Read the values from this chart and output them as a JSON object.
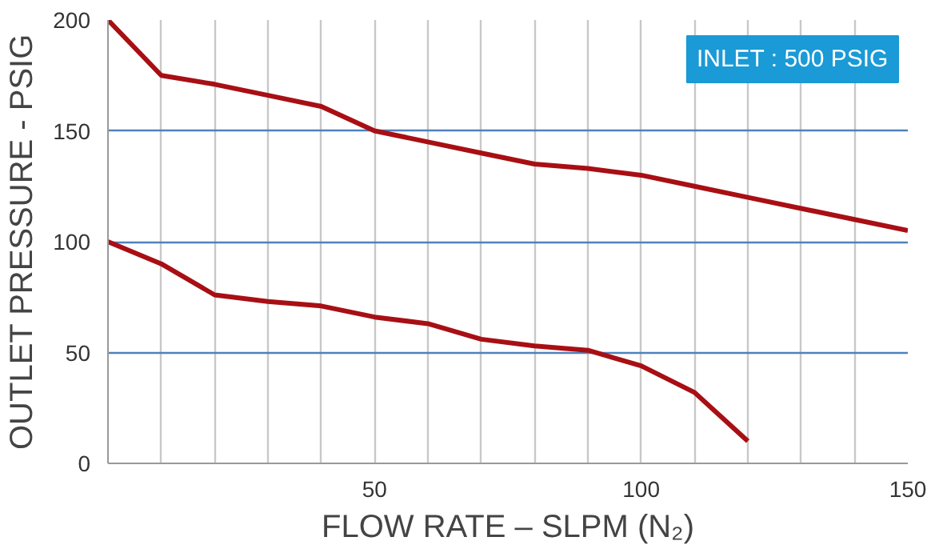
{
  "chart_data": {
    "type": "line",
    "xlabel": "FLOW RATE – SLPM (N₂)",
    "ylabel": "OUTLET PRESSURE - PSIG",
    "x": [
      0,
      10,
      20,
      30,
      40,
      50,
      60,
      70,
      80,
      90,
      100,
      110,
      120,
      130,
      140,
      150
    ],
    "series": [
      {
        "color": "#a80f14",
        "values": [
          200,
          175,
          171,
          166,
          161,
          150,
          145,
          140,
          135,
          133,
          130,
          125,
          120,
          115,
          110,
          105
        ]
      },
      {
        "color": "#a80f14",
        "values": [
          100,
          90,
          76,
          73,
          71,
          66,
          63,
          56,
          53,
          51,
          44,
          32,
          10,
          null,
          null,
          null
        ]
      }
    ],
    "xlim": [
      0,
      150
    ],
    "ylim": [
      0,
      200
    ],
    "xticks": [
      {
        "value": 0,
        "label": null
      },
      {
        "value": 10,
        "label": null
      },
      {
        "value": 20,
        "label": null
      },
      {
        "value": 30,
        "label": null
      },
      {
        "value": 40,
        "label": null
      },
      50,
      {
        "value": 60,
        "label": null
      },
      {
        "value": 70,
        "label": null
      },
      {
        "value": 80,
        "label": null
      },
      {
        "value": 90,
        "label": null
      },
      100,
      {
        "value": 110,
        "label": null
      },
      {
        "value": 120,
        "label": null
      },
      {
        "value": 130,
        "label": null
      },
      {
        "value": 140,
        "label": null
      },
      150
    ],
    "yticks": [
      0,
      50,
      100,
      150,
      200
    ],
    "grid": true,
    "marker": "none",
    "line_style": "solid",
    "annotations": [
      "INLET : 500 PSIG"
    ]
  }
}
